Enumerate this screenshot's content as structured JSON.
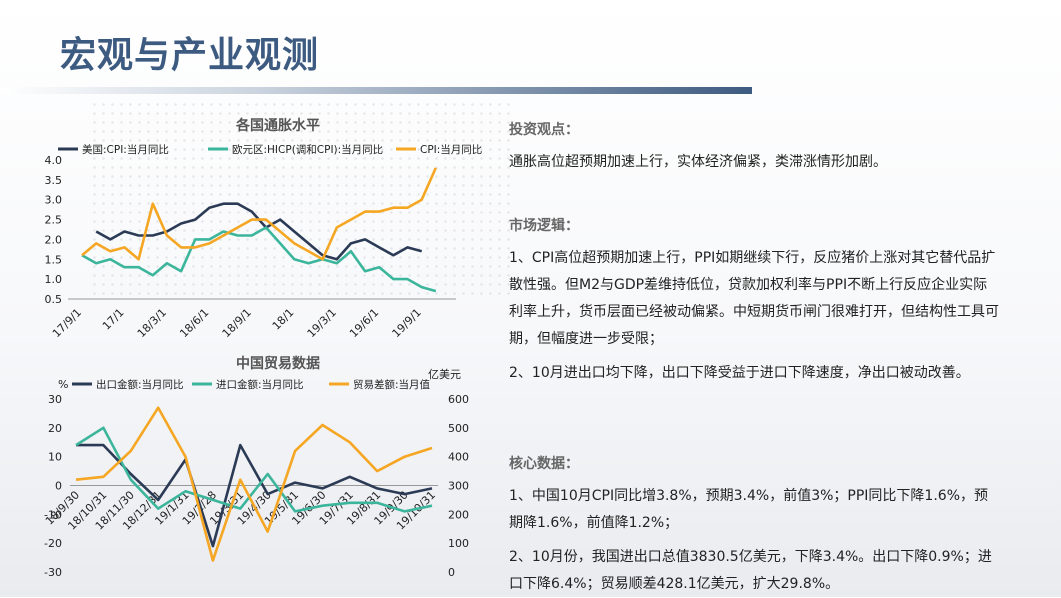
{
  "page": {
    "title": "宏观与产业观测"
  },
  "right": {
    "view_title": "投资观点：",
    "view_text": "通胀高位超预期加速上行，实体经济偏紧，类滞涨情形加剧。",
    "logic_title": "市场逻辑：",
    "logic_p1": "1、CPI高位超预期加速上行，PPI如期继续下行，反应猪价上涨对其它替代品扩散性强。但M2与GDP差维持低位，贷款加权利率与PPI不断上行反应企业实际利率上升，货币层面已经被动偏紧。中短期货币闸门很难打开，但结构性工具可期，但幅度进一步受限；",
    "logic_p2": "2、10月进出口均下降，出口下降受益于进口下降速度，净出口被动改善。",
    "data_title": "核心数据：",
    "data_p1": "1、中国10月CPI同比增3.8%，预期3.4%，前值3%；PPI同比下降1.6%，预期降1.6%，前值降1.2%；",
    "data_p2": "2、10月份，我国进出口总值3830.5亿美元，下降3.4%。出口下降0.9%；进口下降6.4%；贸易顺差428.1亿美元，扩大29.8%。"
  },
  "colors": {
    "us": "#2b3a55",
    "eu": "#3bb59b",
    "cn": "#f5a623",
    "export": "#2b3a55",
    "import": "#3bb59b",
    "balance": "#f5a623"
  },
  "chart_data": [
    {
      "type": "line",
      "title": "各国通胀水平",
      "ylim": [
        0.5,
        4.0
      ],
      "yticks": [
        "0.5",
        "1.0",
        "1.5",
        "2.0",
        "2.5",
        "3.0",
        "3.5",
        "4.0"
      ],
      "x_count": 27,
      "x_ticks": [
        {
          "label": "17/9/1",
          "i": 0
        },
        {
          "label": "17/1",
          "i": 3
        },
        {
          "label": "18/3/1",
          "i": 6
        },
        {
          "label": "18/6/1",
          "i": 9
        },
        {
          "label": "18/9/1",
          "i": 12
        },
        {
          "label": "18/1",
          "i": 15
        },
        {
          "label": "19/3/1",
          "i": 18
        },
        {
          "label": "19/6/1",
          "i": 21
        },
        {
          "label": "19/9/1",
          "i": 24
        }
      ],
      "series": [
        {
          "name": "美国:CPI:当月同比",
          "color_key": "us",
          "start": 1,
          "values": [
            2.2,
            2.0,
            2.2,
            2.1,
            2.1,
            2.2,
            2.4,
            2.5,
            2.8,
            2.9,
            2.9,
            2.7,
            2.3,
            2.5,
            2.2,
            1.9,
            1.6,
            1.5,
            1.9,
            2.0,
            1.8,
            1.6,
            1.8,
            1.7
          ]
        },
        {
          "name": "欧元区:HICP(调和CPI):当月同比",
          "color_key": "eu",
          "start": 0,
          "values": [
            1.6,
            1.4,
            1.5,
            1.3,
            1.3,
            1.1,
            1.4,
            1.2,
            2.0,
            2.0,
            2.2,
            2.1,
            2.1,
            2.3,
            1.9,
            1.5,
            1.4,
            1.5,
            1.4,
            1.7,
            1.2,
            1.3,
            1.0,
            1.0,
            0.8,
            0.7
          ]
        },
        {
          "name": "CPI:当月同比",
          "color_key": "cn",
          "start": 0,
          "values": [
            1.6,
            1.9,
            1.7,
            1.8,
            1.5,
            2.9,
            2.1,
            1.8,
            1.8,
            1.9,
            2.1,
            2.3,
            2.5,
            2.5,
            2.2,
            1.9,
            1.7,
            1.5,
            2.3,
            2.5,
            2.7,
            2.7,
            2.8,
            2.8,
            3.0,
            3.8
          ]
        }
      ]
    },
    {
      "type": "line",
      "title": "中国贸易数据",
      "ylabel_left": "%",
      "ylabel_right": "亿美元",
      "ylim_left": [
        -30,
        30
      ],
      "ylim_right": [
        0,
        600
      ],
      "yticks_left": [
        "-30",
        "-20",
        "-10",
        "0",
        "10",
        "20",
        "30"
      ],
      "yticks_right": [
        "0",
        "100",
        "200",
        "300",
        "400",
        "500",
        "600"
      ],
      "categories": [
        "18/9/30",
        "18/10/31",
        "18/11/30",
        "18/12/31",
        "19/1/31",
        "19/2/28",
        "19/3/31",
        "19/4/30",
        "19/5/31",
        "19/6/30",
        "19/7/31",
        "19/8/31",
        "19/9/30",
        "19/10/31"
      ],
      "series": [
        {
          "name": "出口金额:当月同比",
          "color_key": "export",
          "axis": "left",
          "values": [
            14,
            14,
            4,
            -5,
            9,
            -21,
            14,
            -3,
            1,
            -1,
            3,
            -1,
            -3,
            -1
          ]
        },
        {
          "name": "进口金额:当月同比",
          "color_key": "import",
          "axis": "left",
          "values": [
            14,
            20,
            2,
            -8,
            -2,
            -5,
            -8,
            4,
            -9,
            -7,
            -6,
            -6,
            -9,
            -7
          ]
        },
        {
          "name": "贸易差额:当月值",
          "color_key": "balance",
          "axis": "right",
          "values": [
            320,
            330,
            420,
            570,
            400,
            40,
            320,
            140,
            420,
            510,
            450,
            350,
            400,
            430
          ]
        }
      ]
    }
  ]
}
